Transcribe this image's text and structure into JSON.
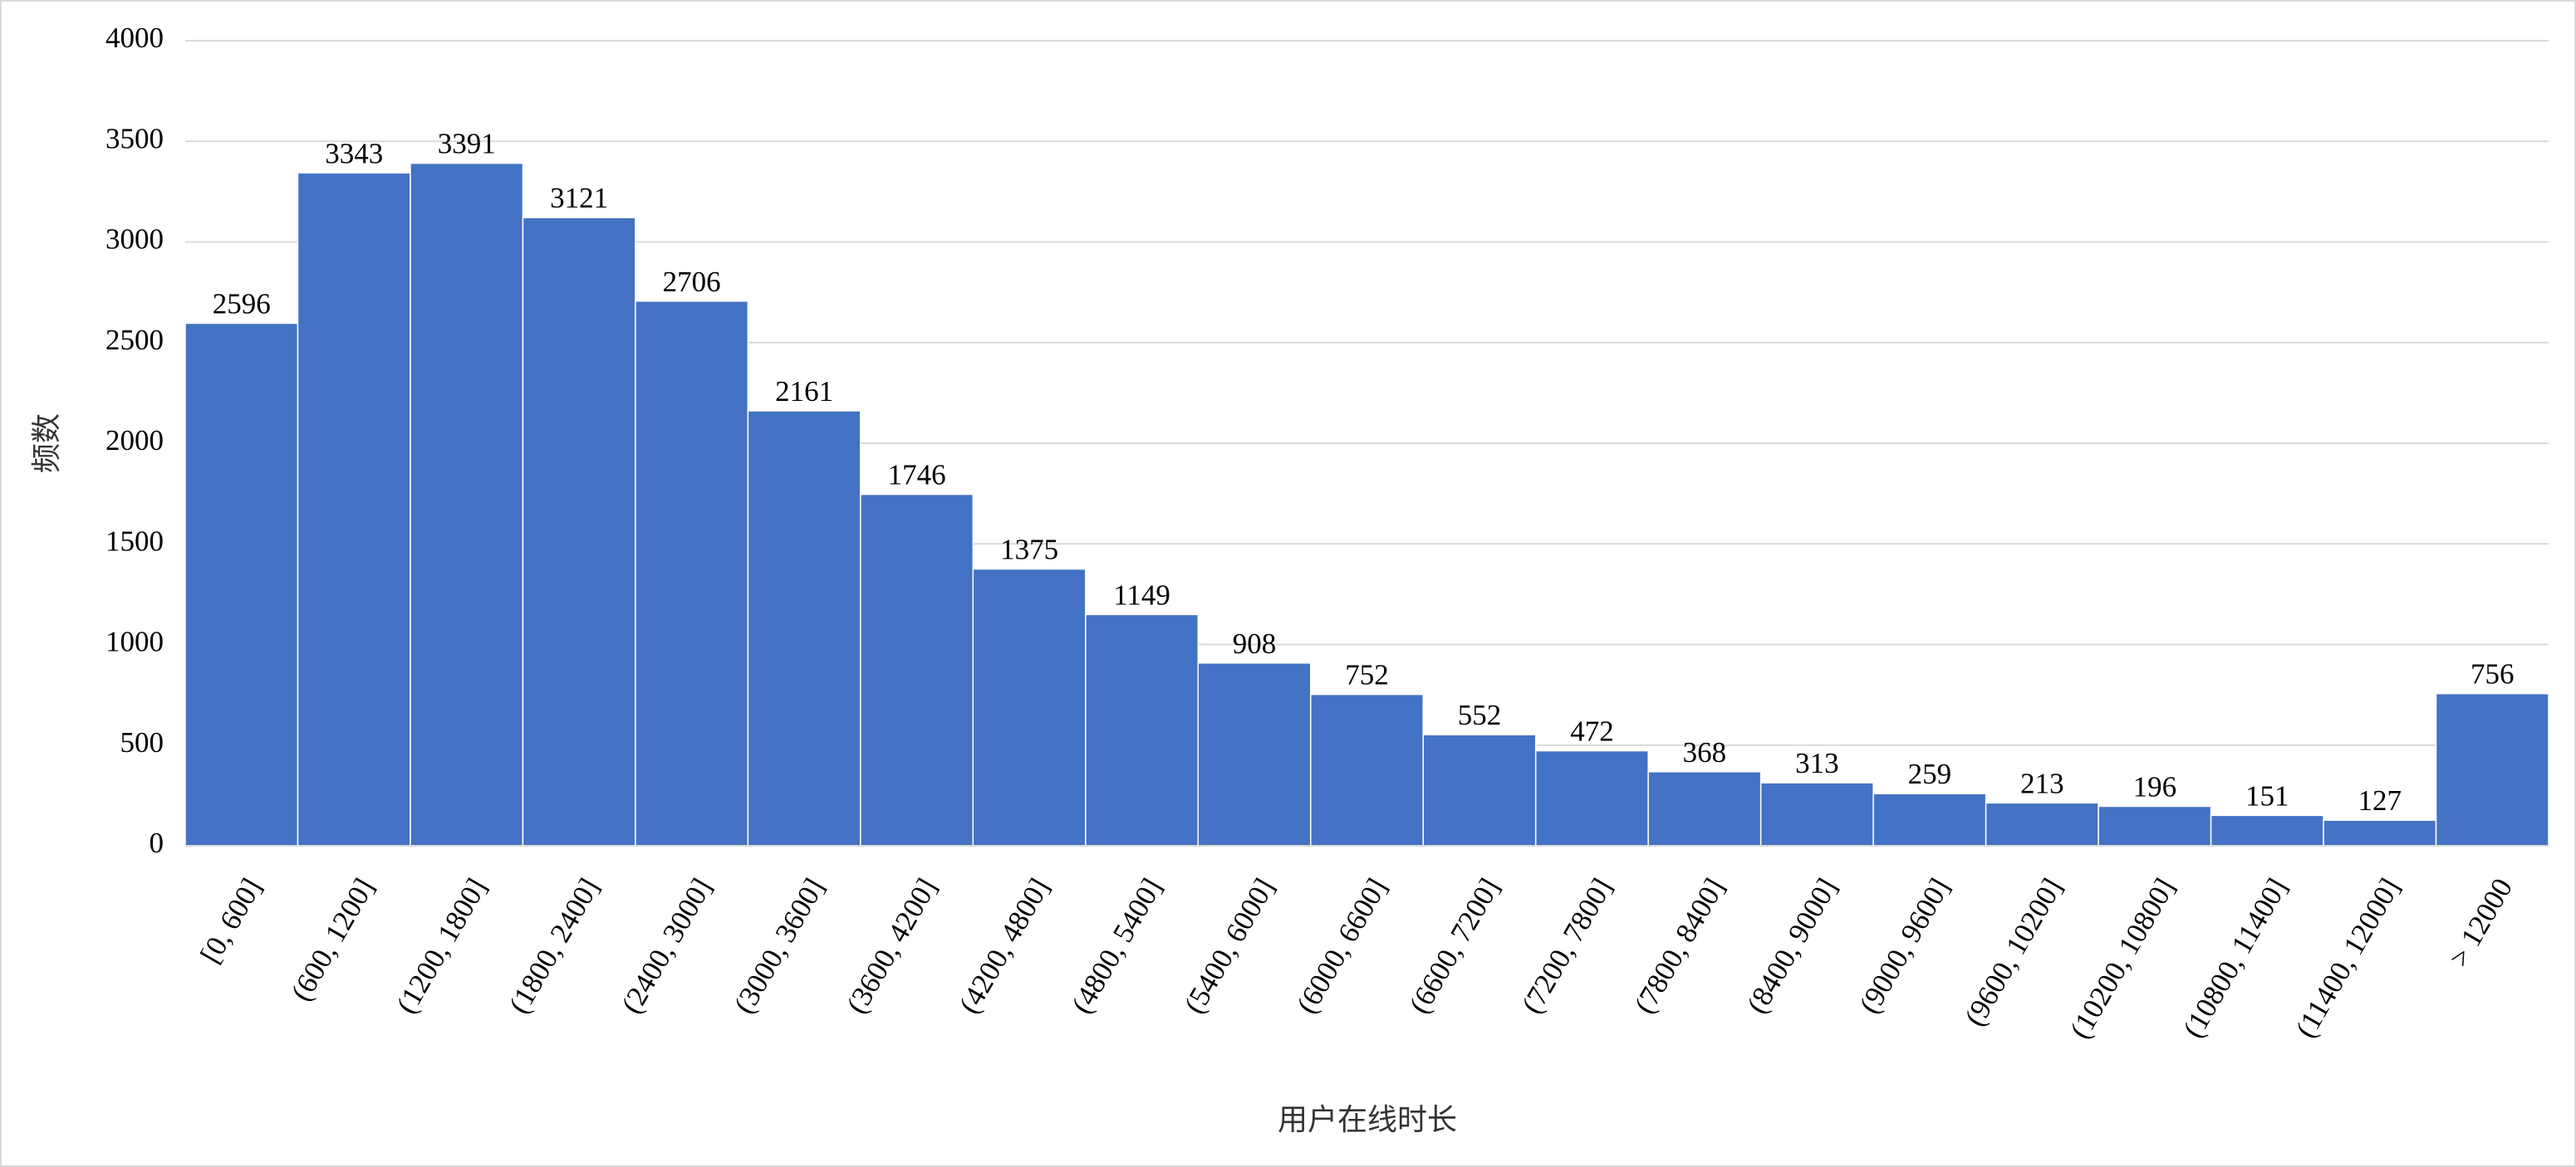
{
  "chart_data": {
    "type": "bar",
    "y_label": "频数",
    "x_label": "用户在线时长",
    "categories": [
      "[0, 600]",
      "(600, 1200]",
      "(1200, 1800]",
      "(1800, 2400]",
      "(2400, 3000]",
      "(3000, 3600]",
      "(3600, 4200]",
      "(4200, 4800]",
      "(4800, 5400]",
      "(5400, 6000]",
      "(6000, 6600]",
      "(6600, 7200]",
      "(7200, 7800]",
      "(7800, 8400]",
      "(8400, 9000]",
      "(9000, 9600]",
      "(9600, 10200]",
      "(10200, 10800]",
      "(10800, 11400]",
      "(11400, 12000]",
      "> 12000"
    ],
    "values": [
      2596,
      3343,
      3391,
      3121,
      2706,
      2161,
      1746,
      1375,
      1149,
      908,
      752,
      552,
      472,
      368,
      313,
      259,
      213,
      196,
      151,
      127,
      756
    ],
    "color": "#4472c4",
    "ylim": [
      0,
      4000
    ],
    "yticks": [
      0,
      500,
      1000,
      1500,
      2000,
      2500,
      3000,
      3500,
      4000
    ],
    "grid": true
  }
}
